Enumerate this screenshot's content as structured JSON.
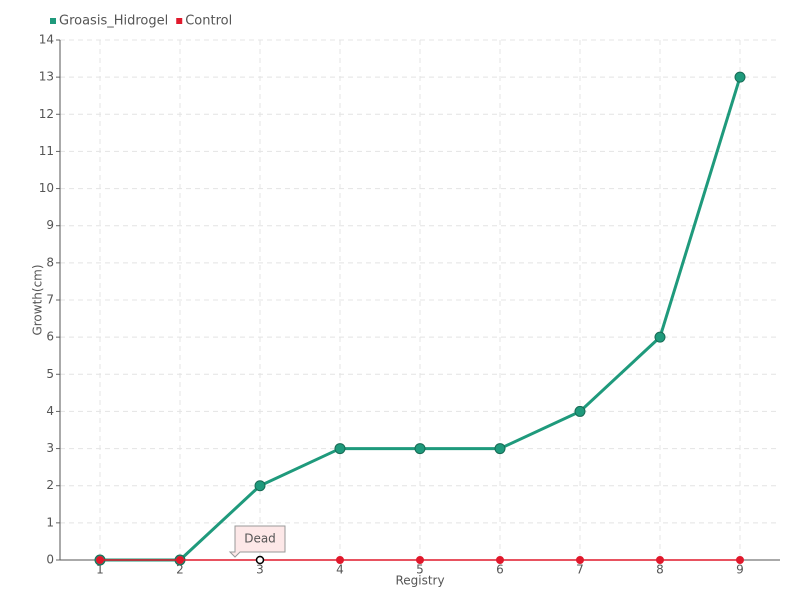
{
  "chart_data": {
    "type": "line",
    "x_label": "Registry",
    "y_label": "Growth(cm)",
    "categories": [
      "1",
      "2",
      "3",
      "4",
      "5",
      "6",
      "7",
      "8",
      "9"
    ],
    "series": [
      {
        "name": "Groasis_Hidrogel",
        "color": "#1f9a7c",
        "values": [
          0,
          0,
          2,
          3,
          3,
          3,
          4,
          6,
          13
        ]
      },
      {
        "name": "Control",
        "color": "#e0192c",
        "values": [
          0,
          0,
          0,
          0,
          0,
          0,
          0,
          0,
          0
        ]
      }
    ],
    "annotations": [
      {
        "text": "Dead",
        "x": "3",
        "series": "Control"
      }
    ],
    "ylim": [
      0,
      14
    ],
    "yticks": [
      0,
      1,
      2,
      3,
      4,
      5,
      6,
      7,
      8,
      9,
      10,
      11,
      12,
      13,
      14
    ],
    "grid": true,
    "legend": "top-left"
  }
}
